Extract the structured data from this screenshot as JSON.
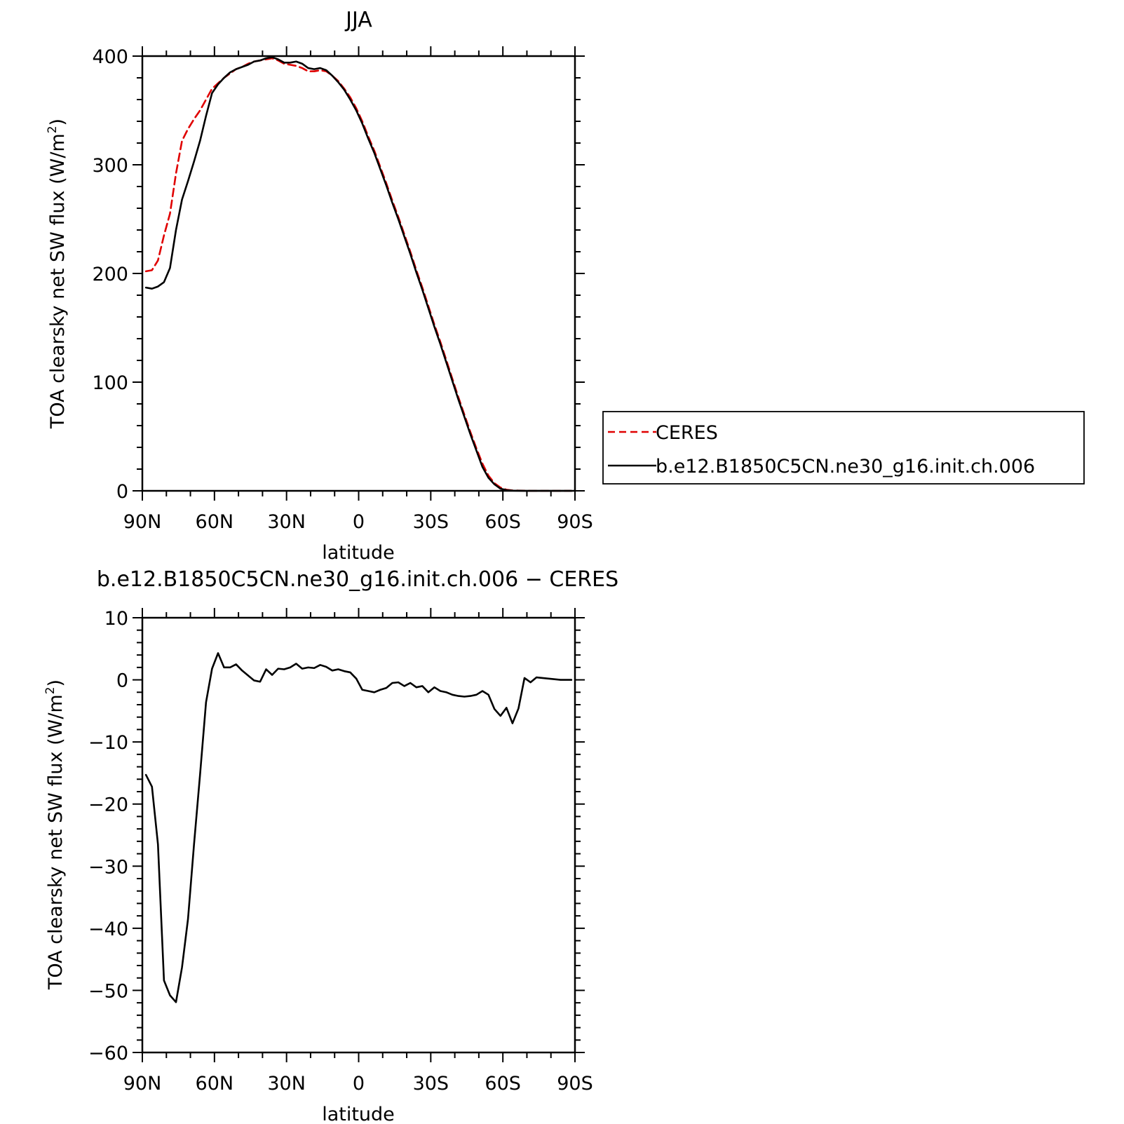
{
  "chart_data": [
    {
      "type": "line",
      "title": "JJA",
      "xlabel": "latitude",
      "ylabel": "TOA clearsky net SW flux (W/m",
      "ylabel_sup": "2",
      "ylabel_end": ")",
      "xlim": [
        90,
        -90
      ],
      "ylim": [
        0,
        400
      ],
      "xticks": [
        90,
        60,
        30,
        0,
        -30,
        -60,
        -90
      ],
      "xtick_labels": [
        "90N",
        "60N",
        "30N",
        "0",
        "30S",
        "60S",
        "90S"
      ],
      "yticks": [
        0,
        100,
        200,
        300,
        400
      ],
      "ytick_labels": [
        "0",
        "100",
        "200",
        "300",
        "400"
      ],
      "legend_position": "right",
      "series": [
        {
          "name": "CERES",
          "color": "#e00000",
          "dash": true,
          "x": [
            88.5,
            86,
            83.5,
            81,
            78.5,
            76,
            73.5,
            71,
            68.5,
            66,
            63.5,
            61,
            58.5,
            56,
            53.5,
            51,
            48.5,
            46,
            43.5,
            41,
            38.5,
            36,
            33.5,
            31,
            28.5,
            26,
            23.5,
            21,
            18.5,
            16,
            13.5,
            11,
            8.5,
            6,
            3.5,
            1,
            -1.5,
            -4,
            -6.5,
            -9,
            -11.5,
            -14,
            -16.5,
            -19,
            -21.5,
            -24,
            -26.5,
            -29,
            -31.5,
            -34,
            -36.5,
            -39,
            -41.5,
            -44,
            -46.5,
            -49,
            -51.5,
            -54,
            -56.5,
            -59,
            -61.5,
            -64,
            -66.5,
            -69,
            -71.5,
            -74,
            -76.5,
            -79,
            -81.5,
            -84,
            -86.5,
            -88.5
          ],
          "y": [
            202,
            203,
            212,
            235,
            255,
            292,
            322,
            333,
            342,
            350,
            360,
            370,
            375,
            380,
            384,
            388,
            390,
            393,
            395,
            396,
            397,
            398,
            396,
            393,
            392,
            391,
            389,
            386,
            386,
            387,
            386,
            382,
            377,
            370,
            362,
            352,
            340,
            326,
            313,
            298,
            283,
            267,
            252,
            236,
            220,
            203,
            187,
            170,
            153,
            137,
            120,
            103,
            86,
            70,
            54,
            39,
            25,
            14,
            7,
            3,
            1,
            0.4,
            0.2,
            0.1,
            0,
            0,
            0,
            0,
            0,
            0,
            0,
            0
          ]
        },
        {
          "name": "b.e12.B1850C5CN.ne30_g16.init.ch.006",
          "color": "#000000",
          "dash": false,
          "x": [
            88.5,
            86,
            83.5,
            81,
            78.5,
            76,
            73.5,
            71,
            68.5,
            66,
            63.5,
            61,
            58.5,
            56,
            53.5,
            51,
            48.5,
            46,
            43.5,
            41,
            38.5,
            36,
            33.5,
            31,
            28.5,
            26,
            23.5,
            21,
            18.5,
            16,
            13.5,
            11,
            8.5,
            6,
            3.5,
            1,
            -1.5,
            -4,
            -6.5,
            -9,
            -11.5,
            -14,
            -16.5,
            -19,
            -21.5,
            -24,
            -26.5,
            -29,
            -31.5,
            -34,
            -36.5,
            -39,
            -41.5,
            -44,
            -46.5,
            -49,
            -51.5,
            -54,
            -56.5,
            -59,
            -61.5,
            -64,
            -66.5,
            -69,
            -71.5,
            -74,
            -76.5,
            -79,
            -81.5,
            -84,
            -86.5,
            -88.5
          ],
          "y": [
            187,
            186,
            188,
            192,
            205,
            240,
            268,
            285,
            303,
            322,
            345,
            366,
            374,
            380,
            385,
            388,
            390,
            392,
            395,
            396,
            398,
            399,
            397,
            394,
            394,
            395,
            393,
            389,
            388,
            389,
            387,
            382,
            376,
            369,
            360,
            350,
            338,
            324,
            311,
            296,
            281,
            265,
            250,
            234,
            218,
            201,
            185,
            168,
            151,
            135,
            118,
            101,
            84,
            68,
            52,
            37,
            22,
            12,
            6,
            2,
            0.6,
            0.2,
            0.1,
            0,
            0,
            0,
            0,
            0,
            0,
            0,
            0,
            0
          ]
        }
      ]
    },
    {
      "type": "line",
      "title": "b.e12.B1850C5CN.ne30_g16.init.ch.006 − CERES",
      "xlabel": "latitude",
      "ylabel": "TOA clearsky net SW flux (W/m",
      "ylabel_sup": "2",
      "ylabel_end": ")",
      "xlim": [
        90,
        -90
      ],
      "ylim": [
        -60,
        10
      ],
      "xticks": [
        90,
        60,
        30,
        0,
        -30,
        -60,
        -90
      ],
      "xtick_labels": [
        "90N",
        "60N",
        "30N",
        "0",
        "30S",
        "60S",
        "90S"
      ],
      "yticks": [
        10,
        0,
        -10,
        -20,
        -30,
        -40,
        -50,
        -60
      ],
      "ytick_labels": [
        "10",
        "0",
        "−10",
        "−20",
        "−30",
        "−40",
        "−50",
        "−60"
      ],
      "series": [
        {
          "name": "b.e12.B1850C5CN.ne30_g16.init.ch.006 − CERES",
          "color": "#000000",
          "dash": false,
          "x": [
            88.5,
            86,
            83.5,
            81,
            78.5,
            76,
            73.5,
            71,
            68.5,
            66,
            63.5,
            61,
            58.5,
            56,
            53.5,
            51,
            48.5,
            46,
            43.5,
            41,
            38.5,
            36,
            33.5,
            31,
            28.5,
            26,
            23.5,
            21,
            18.5,
            16,
            13.5,
            11,
            8.5,
            6,
            3.5,
            1,
            -1.5,
            -4,
            -6.5,
            -9,
            -11.5,
            -14,
            -16.5,
            -19,
            -21.5,
            -24,
            -26.5,
            -29,
            -31.5,
            -34,
            -36.5,
            -39,
            -41.5,
            -44,
            -46.5,
            -49,
            -51.5,
            -54,
            -56.5,
            -59,
            -61.5,
            -64,
            -66.5,
            -69,
            -71.5,
            -74,
            -76.5,
            -79,
            -81.5,
            -84,
            -86.5,
            -88.5
          ],
          "y": [
            -15.3,
            -17.2,
            -26.5,
            -48.4,
            -50.8,
            -51.9,
            -46.3,
            -38.5,
            -26.5,
            -15.3,
            -3.6,
            1.8,
            4.3,
            2.0,
            2.0,
            2.5,
            1.5,
            0.7,
            -0.1,
            -0.3,
            1.7,
            0.8,
            1.8,
            1.7,
            2.0,
            2.6,
            1.8,
            2.0,
            1.9,
            2.4,
            2.1,
            1.5,
            1.7,
            1.4,
            1.2,
            0.2,
            -1.6,
            -1.8,
            -2.0,
            -1.6,
            -1.3,
            -0.5,
            -0.4,
            -1.0,
            -0.5,
            -1.2,
            -1.0,
            -2.0,
            -1.2,
            -1.8,
            -2.0,
            -2.4,
            -2.6,
            -2.7,
            -2.6,
            -2.4,
            -1.8,
            -2.4,
            -4.7,
            -5.8,
            -4.5,
            -7.0,
            -4.6,
            0.3,
            -0.4,
            0.4,
            0.3,
            0.2,
            0.1,
            0,
            0,
            0
          ]
        }
      ]
    }
  ]
}
